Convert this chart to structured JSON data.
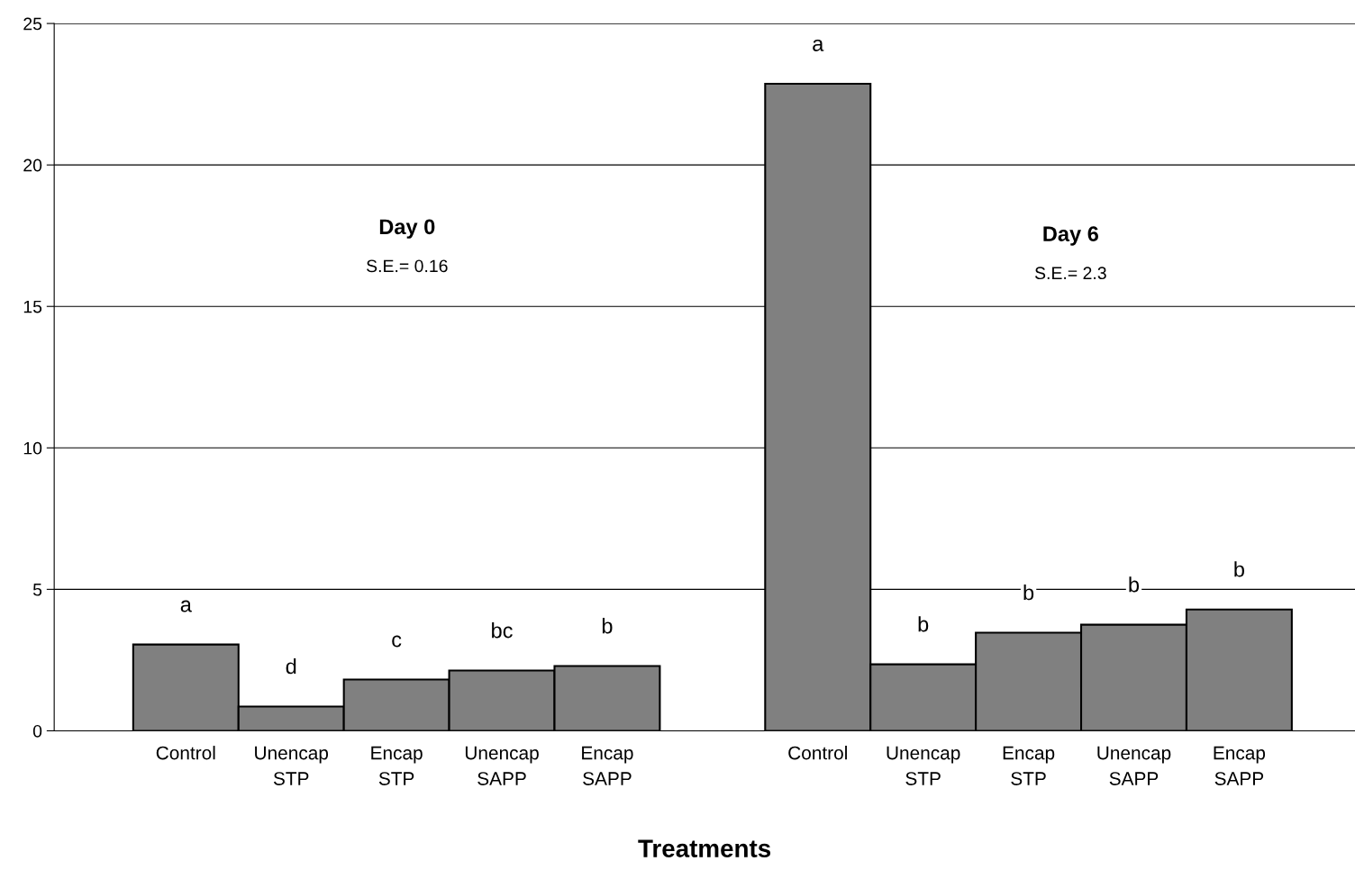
{
  "chart_data": {
    "type": "bar",
    "xlabel": "Treatments",
    "categories": [
      "Control",
      "Unencap\nSTP",
      "Encap\nSTP",
      "Unencap\nSAPP",
      "Encap\nSAPP",
      null,
      "Control",
      "Unencap\nSTP",
      "Encap\nSTP",
      "Unencap\nSAPP",
      "Encap\nSAPP"
    ],
    "values": [
      3.05,
      0.86,
      1.81,
      2.13,
      2.29,
      null,
      22.87,
      2.35,
      3.47,
      3.75,
      4.29
    ],
    "value_labels": [
      "a",
      "d",
      "c",
      "bc",
      "b",
      null,
      "a",
      "b",
      "b",
      "b",
      "b"
    ],
    "color": "#808080",
    "annotations": [
      "Day 0",
      "S.E.= 0.16",
      "Day 6",
      "S.E.= 2.3"
    ],
    "ylim": [
      0,
      25
    ],
    "yticks": [
      0,
      5,
      10,
      15,
      20,
      25
    ],
    "grid": "y",
    "legend": false
  }
}
